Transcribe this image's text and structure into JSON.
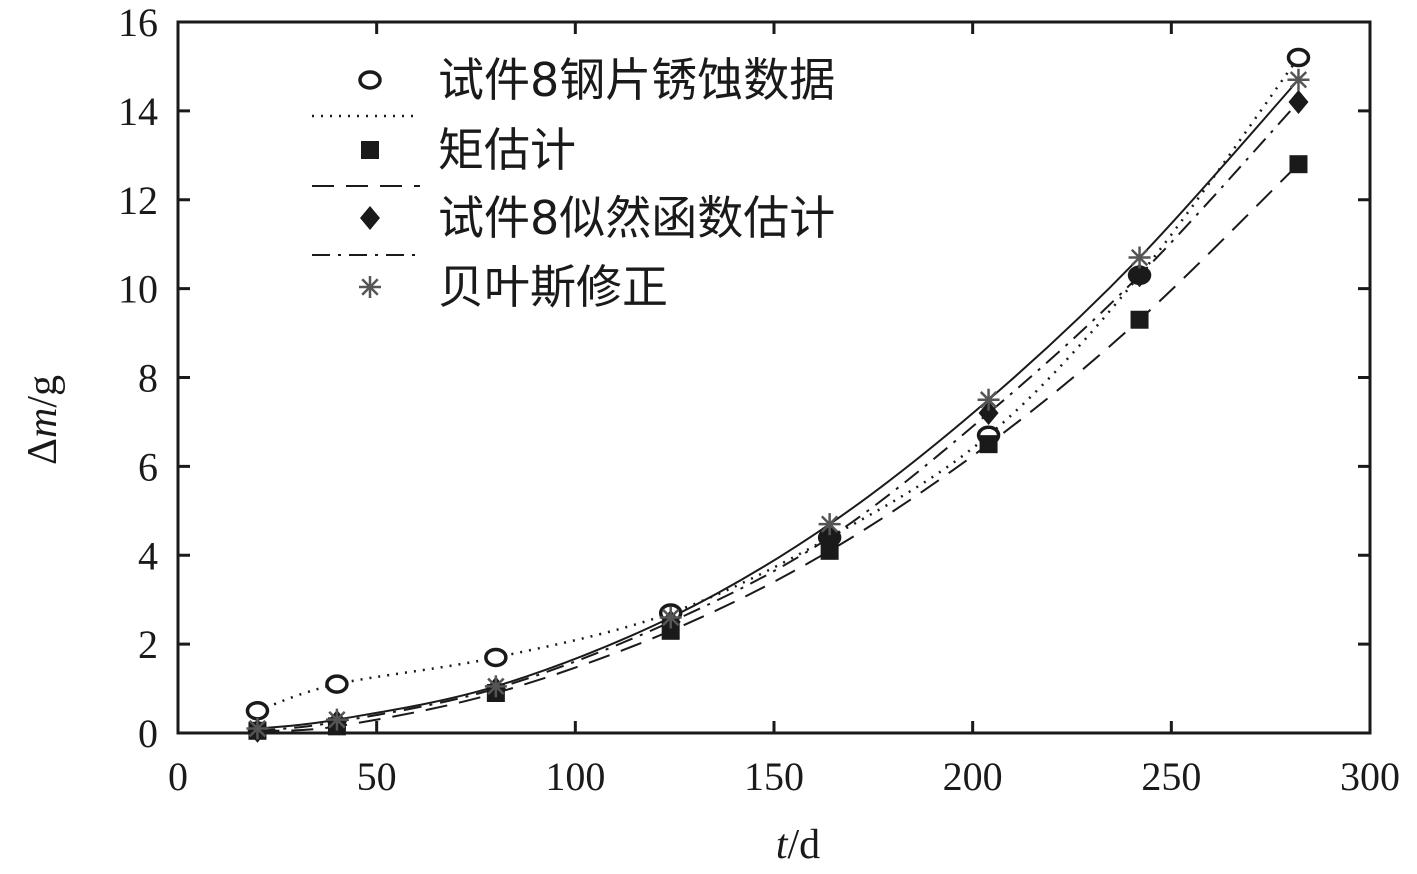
{
  "chart_data": {
    "type": "scatter",
    "xlabel_italic": "t",
    "xlabel_unit": "/d",
    "ylabel_prefix": "Δ",
    "ylabel_italic": "m",
    "ylabel_unit": "/g",
    "xlim": [
      0,
      300
    ],
    "ylim": [
      0,
      16
    ],
    "x_ticks": [
      "0",
      "50",
      "100",
      "150",
      "200",
      "250",
      "300"
    ],
    "y_ticks": [
      "0",
      "2",
      "4",
      "6",
      "8",
      "10",
      "12",
      "14",
      "16"
    ],
    "grid": false,
    "legend_position": "top-left",
    "x": [
      20,
      40,
      80,
      124,
      164,
      204,
      242,
      282
    ],
    "series": [
      {
        "name": "试件8钢片锈蚀数据",
        "marker": "open-circle",
        "line": "dotted",
        "values": [
          0.5,
          1.1,
          1.7,
          2.7,
          4.4,
          6.7,
          10.3,
          15.2
        ]
      },
      {
        "name": "矩估计",
        "marker": "square",
        "line": "dashed",
        "values": [
          0.05,
          0.15,
          0.9,
          2.3,
          4.1,
          6.5,
          9.3,
          12.8
        ]
      },
      {
        "name": "试件8似然函数估计",
        "marker": "diamond",
        "line": "dash-dot",
        "values": [
          0.05,
          0.25,
          1.0,
          2.5,
          4.4,
          7.2,
          10.3,
          14.2
        ]
      },
      {
        "name": "贝叶斯修正",
        "marker": "asterisk",
        "line": "solid",
        "values": [
          0.1,
          0.3,
          1.05,
          2.6,
          4.7,
          7.5,
          10.7,
          14.7
        ]
      }
    ],
    "colors": {
      "ink": "#1a1a1a",
      "background": "#ffffff"
    }
  }
}
